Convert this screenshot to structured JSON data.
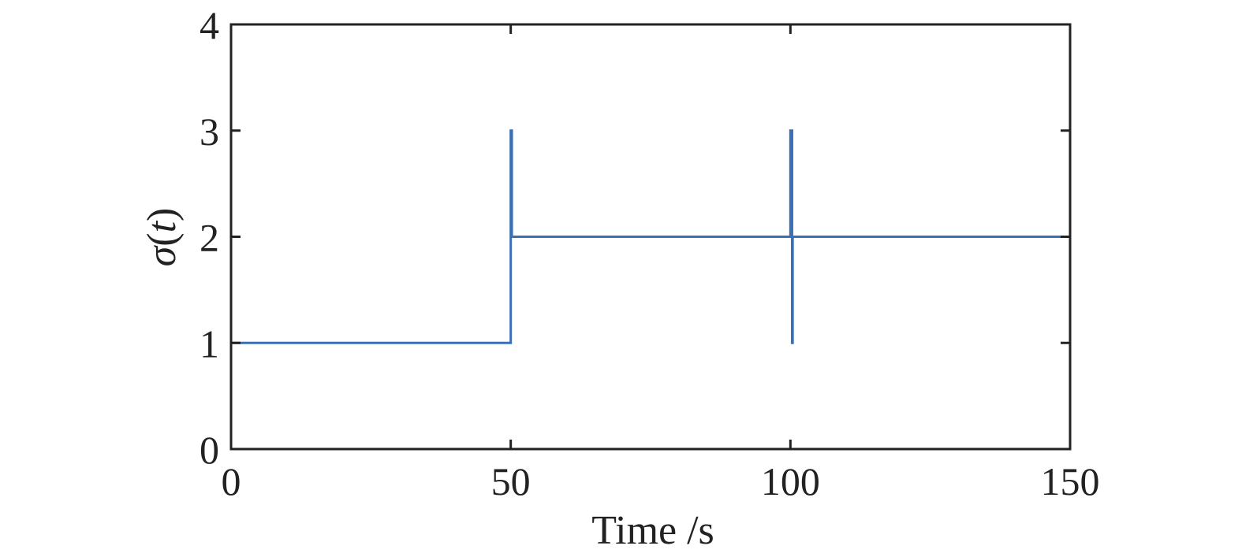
{
  "chart_data": {
    "type": "line",
    "xlabel": "Time /s",
    "ylabel": {
      "main": "σ",
      "open": "(",
      "var": "t",
      "close": ")"
    },
    "xlim": [
      0,
      150
    ],
    "ylim": [
      0,
      4
    ],
    "xticks": [
      0,
      50,
      100,
      150
    ],
    "yticks": [
      0,
      1,
      2,
      3,
      4
    ],
    "x_tick_labels": [
      "0",
      "50",
      "100",
      "150"
    ],
    "y_tick_labels": [
      "0",
      "1",
      "2",
      "3",
      "4"
    ],
    "grid": false,
    "series": [
      {
        "color": "#3b6fb6",
        "points": [
          [
            0,
            1
          ],
          [
            50,
            1
          ],
          [
            50,
            3
          ],
          [
            50.2,
            3
          ],
          [
            50.2,
            2
          ],
          [
            100,
            2
          ],
          [
            100,
            3
          ],
          [
            100.3,
            3
          ],
          [
            100.3,
            1
          ],
          [
            100.4,
            1
          ],
          [
            100.4,
            2
          ],
          [
            150,
            2
          ]
        ]
      }
    ]
  }
}
